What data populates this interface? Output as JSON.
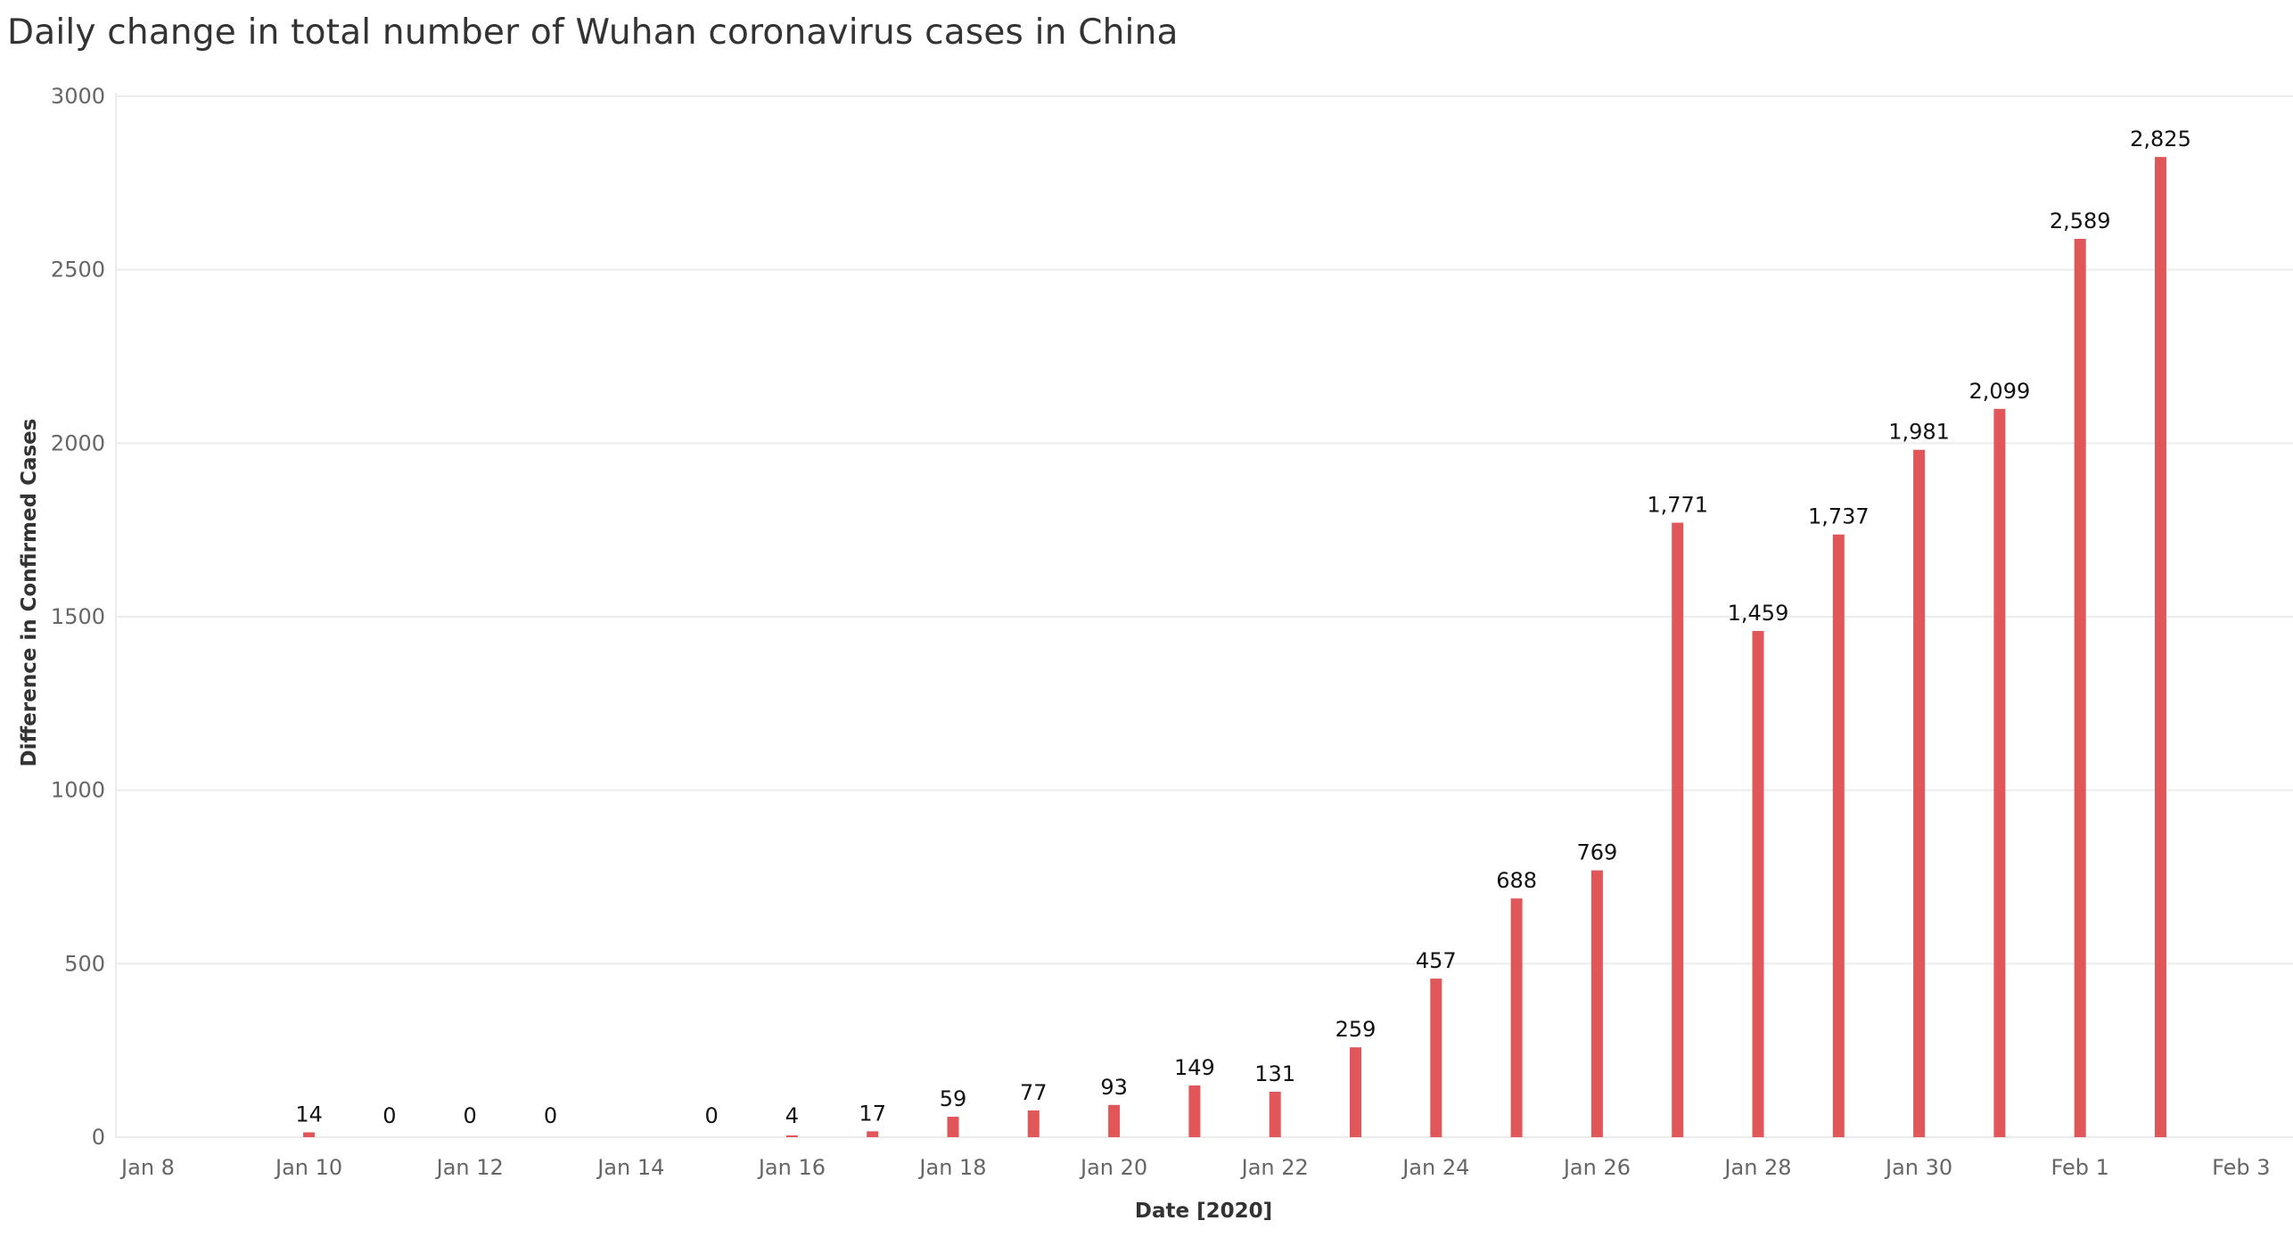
{
  "chart_data": {
    "type": "bar",
    "title": "Daily change in total number of Wuhan coronavirus cases in China",
    "xlabel": "Date [2020]",
    "ylabel": "Difference in Confirmed Cases",
    "ylim": [
      0,
      3000
    ],
    "xlim": [
      "2020-01-08",
      "2020-02-03"
    ],
    "yticks": [
      0,
      500,
      1000,
      1500,
      2000,
      2500,
      3000
    ],
    "xticks": [
      {
        "date": "2020-01-08",
        "label": "Jan 8"
      },
      {
        "date": "2020-01-10",
        "label": "Jan 10"
      },
      {
        "date": "2020-01-12",
        "label": "Jan 12"
      },
      {
        "date": "2020-01-14",
        "label": "Jan 14"
      },
      {
        "date": "2020-01-16",
        "label": "Jan 16"
      },
      {
        "date": "2020-01-18",
        "label": "Jan 18"
      },
      {
        "date": "2020-01-20",
        "label": "Jan 20"
      },
      {
        "date": "2020-01-22",
        "label": "Jan 22"
      },
      {
        "date": "2020-01-24",
        "label": "Jan 24"
      },
      {
        "date": "2020-01-26",
        "label": "Jan 26"
      },
      {
        "date": "2020-01-28",
        "label": "Jan 28"
      },
      {
        "date": "2020-01-30",
        "label": "Jan 30"
      },
      {
        "date": "2020-02-01",
        "label": "Feb 1"
      },
      {
        "date": "2020-02-03",
        "label": "Feb 3"
      }
    ],
    "grid": true,
    "bar_color": "#e15759",
    "points": [
      {
        "date": "2020-01-10",
        "value": 14,
        "label": "14"
      },
      {
        "date": "2020-01-11",
        "value": 0,
        "label": "0"
      },
      {
        "date": "2020-01-12",
        "value": 0,
        "label": "0"
      },
      {
        "date": "2020-01-13",
        "value": 0,
        "label": "0"
      },
      {
        "date": "2020-01-15",
        "value": 0,
        "label": "0"
      },
      {
        "date": "2020-01-16",
        "value": 4,
        "label": "4"
      },
      {
        "date": "2020-01-17",
        "value": 17,
        "label": "17"
      },
      {
        "date": "2020-01-18",
        "value": 59,
        "label": "59"
      },
      {
        "date": "2020-01-19",
        "value": 77,
        "label": "77"
      },
      {
        "date": "2020-01-20",
        "value": 93,
        "label": "93"
      },
      {
        "date": "2020-01-21",
        "value": 149,
        "label": "149"
      },
      {
        "date": "2020-01-22",
        "value": 131,
        "label": "131"
      },
      {
        "date": "2020-01-23",
        "value": 259,
        "label": "259"
      },
      {
        "date": "2020-01-24",
        "value": 457,
        "label": "457"
      },
      {
        "date": "2020-01-25",
        "value": 688,
        "label": "688"
      },
      {
        "date": "2020-01-26",
        "value": 769,
        "label": "769"
      },
      {
        "date": "2020-01-27",
        "value": 1771,
        "label": "1,771"
      },
      {
        "date": "2020-01-28",
        "value": 1459,
        "label": "1,459"
      },
      {
        "date": "2020-01-29",
        "value": 1737,
        "label": "1,737"
      },
      {
        "date": "2020-01-30",
        "value": 1981,
        "label": "1,981"
      },
      {
        "date": "2020-01-31",
        "value": 2099,
        "label": "2,099"
      },
      {
        "date": "2020-02-01",
        "value": 2589,
        "label": "2,589"
      },
      {
        "date": "2020-02-02",
        "value": 2825,
        "label": "2,825"
      }
    ]
  }
}
